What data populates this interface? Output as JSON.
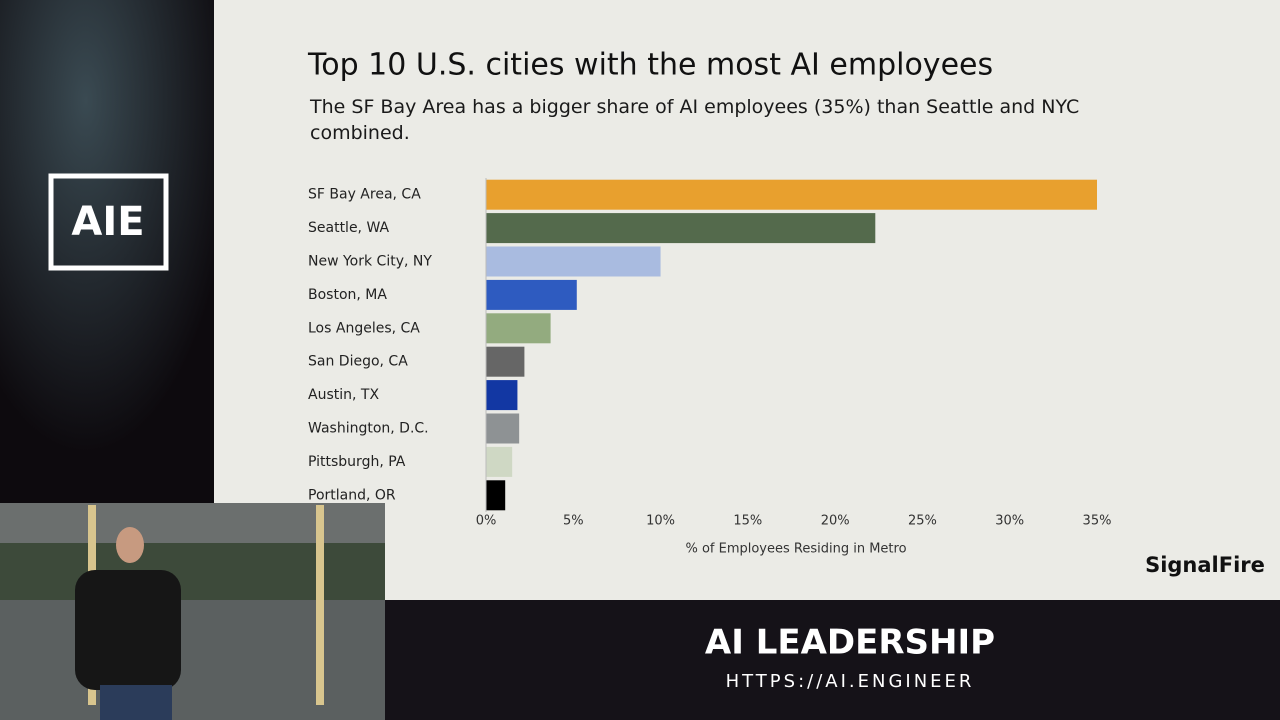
{
  "chart_data": {
    "type": "bar",
    "title": "Top 10 U.S. cities with the most AI employees",
    "subtitle": "The SF Bay Area has a bigger share of AI employees (35%) than Seattle and NYC combined.",
    "categories": [
      "SF Bay Area, CA",
      "Seattle, WA",
      "New York City, NY",
      "Boston, MA",
      "Los Angeles, CA",
      "San Diego, CA",
      "Austin, TX",
      "Washington, D.C.",
      "Pittsburgh, PA",
      "Portland, OR"
    ],
    "values": [
      35,
      22.3,
      10,
      5.2,
      3.7,
      2.2,
      1.8,
      1.9,
      1.5,
      1.1
    ],
    "colors": [
      "#e8a02e",
      "#546a4c",
      "#a9bbe0",
      "#2e5bc0",
      "#93ab7f",
      "#666666",
      "#1237a3",
      "#8e9294",
      "#cfd8c4",
      "#000000"
    ],
    "xlim": [
      0,
      35
    ],
    "xticks": [
      {
        "value": 0,
        "label": "0%"
      },
      {
        "value": 5,
        "label": "5%"
      },
      {
        "value": 10,
        "label": "10%"
      },
      {
        "value": 15,
        "label": "15%"
      },
      {
        "value": 20,
        "label": "20%"
      },
      {
        "value": 25,
        "label": "25%"
      },
      {
        "value": 30,
        "label": "30%"
      },
      {
        "value": 35,
        "label": "35%"
      }
    ],
    "xlabel": "% of Employees Residing in Metro"
  },
  "branding": {
    "logo": "AIE",
    "source": "SignalFire",
    "event": "AI LEADERSHIP",
    "url": "HTTPS://AI.ENGINEER"
  }
}
